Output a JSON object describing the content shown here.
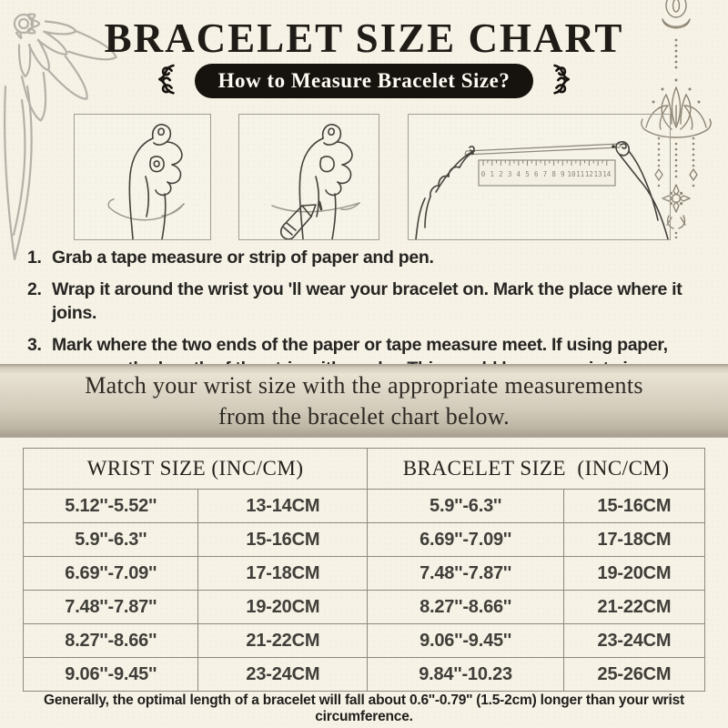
{
  "page": {
    "background": "#f6f2e6",
    "accent_dark": "#16120d",
    "line_gray": "#8d897f",
    "banner_beige": "#d3ccbc"
  },
  "header": {
    "title": "BRACELET SIZE CHART",
    "pill_label": "How to Measure Bracelet Size?"
  },
  "illustrations": {
    "box1": "hand with string wrapped around wrist",
    "box2": "hand marking wrist with pen",
    "box3": "hands measuring paper strip with ruler",
    "ruler": {
      "numbers": [
        "0",
        "1",
        "2",
        "3",
        "4",
        "5",
        "6",
        "7",
        "8",
        "9",
        "10",
        "11",
        "12",
        "13",
        "14"
      ]
    }
  },
  "steps": [
    {
      "num": "1.",
      "text": "Grab a tape measure or strip of paper and pen."
    },
    {
      "num": "2.",
      "text": "Wrap it around the wrist you 'll wear your bracelet on. Mark the place where it joins."
    },
    {
      "num": "3.",
      "text": "Mark where the two ends of the paper or tape measure meet. If using paper, measure the length of the strip with a ruler. This would be your wrist size."
    }
  ],
  "banner": {
    "line1": "Match your wrist size with the appropriate measurements",
    "line2": "from the bracelet chart below."
  },
  "size_table": {
    "headers": [
      "WRIST SIZE (INC/CM)",
      "BRACELET SIZE  (INC/CM)"
    ],
    "rows": [
      [
        "5.12''-5.52''",
        "13-14CM",
        "5.9''-6.3''",
        "15-16CM"
      ],
      [
        "5.9''-6.3''",
        "15-16CM",
        "6.69''-7.09''",
        "17-18CM"
      ],
      [
        "6.69''-7.09''",
        "17-18CM",
        "7.48''-7.87''",
        "19-20CM"
      ],
      [
        "7.48''-7.87''",
        "19-20CM",
        "8.27''-8.66''",
        "21-22CM"
      ],
      [
        "8.27''-8.66''",
        "21-22CM",
        "9.06''-9.45''",
        "23-24CM"
      ],
      [
        "9.06''-9.45''",
        "23-24CM",
        "9.84''-10.23",
        "25-26CM"
      ]
    ]
  },
  "footer": {
    "note": "Generally, the optimal length of a bracelet will fall about 0.6''-0.79'' (1.5-2cm) longer than your wrist circumference."
  },
  "chart_data": {
    "type": "table",
    "columns": [
      "WRIST SIZE (INC)",
      "WRIST SIZE (CM)",
      "BRACELET SIZE (INC)",
      "BRACELET SIZE (CM)"
    ],
    "rows": [
      [
        "5.12''-5.52''",
        "13-14CM",
        "5.9''-6.3''",
        "15-16CM"
      ],
      [
        "5.9''-6.3''",
        "15-16CM",
        "6.69''-7.09''",
        "17-18CM"
      ],
      [
        "6.69''-7.09''",
        "17-18CM",
        "7.48''-7.87''",
        "19-20CM"
      ],
      [
        "7.48''-7.87''",
        "19-20CM",
        "8.27''-8.66''",
        "21-22CM"
      ],
      [
        "8.27''-8.66''",
        "21-22CM",
        "9.06''-9.45''",
        "23-24CM"
      ],
      [
        "9.06''-9.45''",
        "23-24CM",
        "9.84''-10.23",
        "25-26CM"
      ]
    ]
  }
}
